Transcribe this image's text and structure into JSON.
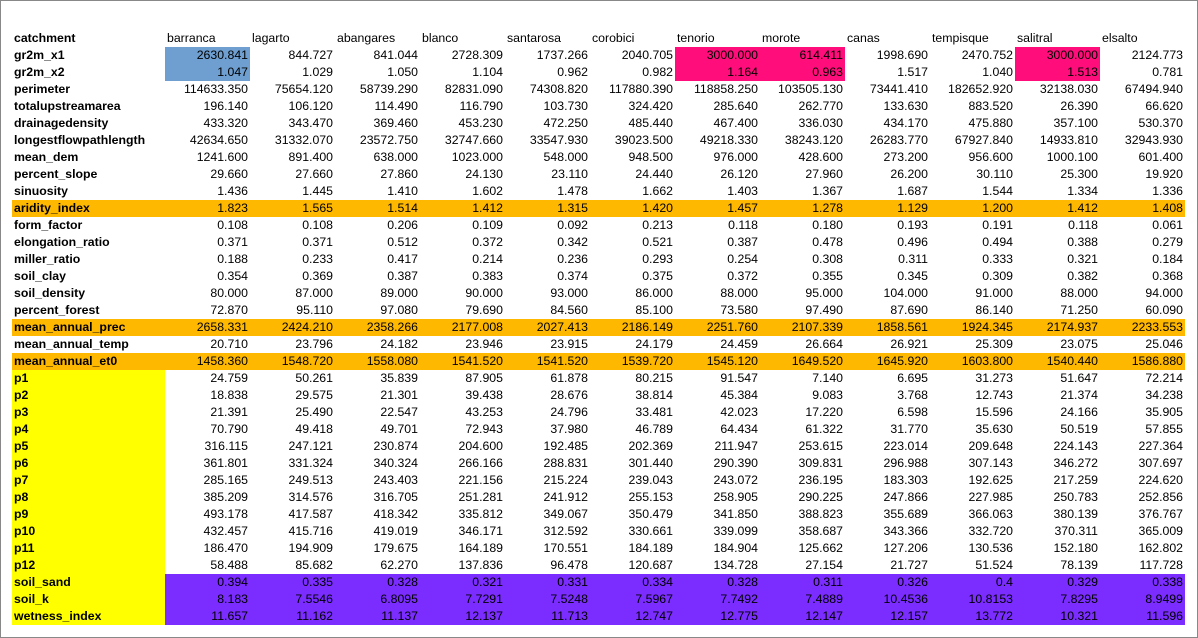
{
  "header": {
    "label": "catchment",
    "catchments": [
      "barranca",
      "lagarto",
      "abangares",
      "blanco",
      "santarosa",
      "corobici",
      "tenorio",
      "morote",
      "canas",
      "tempisque",
      "salitral",
      "elsalto"
    ]
  },
  "colors": {
    "orange": "#ffb800",
    "yellow": "#ffff00",
    "purple": "#7b2cff",
    "blue": "#6f9fd0",
    "pink": "#ff0d7a"
  },
  "rows": [
    {
      "name": "gr2m_x1",
      "values": [
        "2630.841",
        "844.727",
        "841.044",
        "2728.309",
        "1737.266",
        "2040.705",
        "3000.000",
        "614.411",
        "1998.690",
        "2470.752",
        "3000.000",
        "2124.773"
      ],
      "cellColors": {
        "0": "blue",
        "6": "pink",
        "7": "pink",
        "10": "pink"
      }
    },
    {
      "name": "gr2m_x2",
      "values": [
        "1.047",
        "1.029",
        "1.050",
        "1.104",
        "0.962",
        "0.982",
        "1.164",
        "0.963",
        "1.517",
        "1.040",
        "1.513",
        "0.781"
      ],
      "cellColors": {
        "0": "blue",
        "6": "pink",
        "7": "pink",
        "10": "pink"
      }
    },
    {
      "name": "perimeter",
      "values": [
        "114633.350",
        "75654.120",
        "58739.290",
        "82831.090",
        "74308.820",
        "117880.390",
        "118858.250",
        "103505.130",
        "73441.410",
        "182652.920",
        "32138.030",
        "67494.940"
      ]
    },
    {
      "name": "totalupstreamarea",
      "values": [
        "196.140",
        "106.120",
        "114.490",
        "116.790",
        "103.730",
        "324.420",
        "285.640",
        "262.770",
        "133.630",
        "883.520",
        "26.390",
        "66.620"
      ]
    },
    {
      "name": "drainagedensity",
      "values": [
        "433.320",
        "343.470",
        "369.460",
        "453.230",
        "472.250",
        "485.440",
        "467.400",
        "336.030",
        "434.170",
        "475.880",
        "357.100",
        "530.370"
      ]
    },
    {
      "name": "longestflowpathlength",
      "values": [
        "42634.650",
        "31332.070",
        "23572.750",
        "32747.660",
        "33547.930",
        "39023.500",
        "49218.330",
        "38243.120",
        "26283.770",
        "67927.840",
        "14933.810",
        "32943.930"
      ]
    },
    {
      "name": "mean_dem",
      "values": [
        "1241.600",
        "891.400",
        "638.000",
        "1023.000",
        "548.000",
        "948.500",
        "976.000",
        "428.600",
        "273.200",
        "956.600",
        "1000.100",
        "601.400"
      ]
    },
    {
      "name": "percent_slope",
      "values": [
        "29.660",
        "27.660",
        "27.860",
        "24.130",
        "23.110",
        "24.440",
        "26.120",
        "27.960",
        "26.200",
        "30.110",
        "25.300",
        "19.920"
      ]
    },
    {
      "name": "sinuosity",
      "values": [
        "1.436",
        "1.445",
        "1.410",
        "1.602",
        "1.478",
        "1.662",
        "1.403",
        "1.367",
        "1.687",
        "1.544",
        "1.334",
        "1.336"
      ]
    },
    {
      "name": "aridity_index",
      "values": [
        "1.823",
        "1.565",
        "1.514",
        "1.412",
        "1.315",
        "1.420",
        "1.457",
        "1.278",
        "1.129",
        "1.200",
        "1.412",
        "1.408"
      ],
      "rowColor": "orange"
    },
    {
      "name": "form_factor",
      "values": [
        "0.108",
        "0.108",
        "0.206",
        "0.109",
        "0.092",
        "0.213",
        "0.118",
        "0.180",
        "0.193",
        "0.191",
        "0.118",
        "0.061"
      ]
    },
    {
      "name": "elongation_ratio",
      "values": [
        "0.371",
        "0.371",
        "0.512",
        "0.372",
        "0.342",
        "0.521",
        "0.387",
        "0.478",
        "0.496",
        "0.494",
        "0.388",
        "0.279"
      ]
    },
    {
      "name": "miller_ratio",
      "values": [
        "0.188",
        "0.233",
        "0.417",
        "0.214",
        "0.236",
        "0.293",
        "0.254",
        "0.308",
        "0.311",
        "0.333",
        "0.321",
        "0.184"
      ]
    },
    {
      "name": "soil_clay",
      "values": [
        "0.354",
        "0.369",
        "0.387",
        "0.383",
        "0.374",
        "0.375",
        "0.372",
        "0.355",
        "0.345",
        "0.309",
        "0.382",
        "0.368"
      ]
    },
    {
      "name": "soil_density",
      "values": [
        "80.000",
        "87.000",
        "89.000",
        "90.000",
        "93.000",
        "86.000",
        "88.000",
        "95.000",
        "104.000",
        "91.000",
        "88.000",
        "94.000"
      ]
    },
    {
      "name": "percent_forest",
      "values": [
        "72.870",
        "95.110",
        "97.080",
        "79.690",
        "84.560",
        "85.100",
        "73.580",
        "97.490",
        "87.690",
        "86.140",
        "71.250",
        "60.090"
      ]
    },
    {
      "name": "mean_annual_prec",
      "values": [
        "2658.331",
        "2424.210",
        "2358.266",
        "2177.008",
        "2027.413",
        "2186.149",
        "2251.760",
        "2107.339",
        "1858.561",
        "1924.345",
        "2174.937",
        "2233.553"
      ],
      "rowColor": "orange"
    },
    {
      "name": "mean_annual_temp",
      "values": [
        "20.710",
        "23.796",
        "24.182",
        "23.946",
        "23.915",
        "24.179",
        "24.459",
        "26.664",
        "26.921",
        "25.309",
        "23.075",
        "25.046"
      ]
    },
    {
      "name": "mean_annual_et0",
      "values": [
        "1458.360",
        "1548.720",
        "1558.080",
        "1541.520",
        "1541.520",
        "1539.720",
        "1545.120",
        "1649.520",
        "1645.920",
        "1603.800",
        "1540.440",
        "1586.880"
      ],
      "rowColor": "orange"
    },
    {
      "name": "p1",
      "values": [
        "24.759",
        "50.261",
        "35.839",
        "87.905",
        "61.878",
        "80.215",
        "91.547",
        "7.140",
        "6.695",
        "31.273",
        "51.647",
        "72.214"
      ],
      "labelColor": "yellow"
    },
    {
      "name": "p2",
      "values": [
        "18.838",
        "29.575",
        "21.301",
        "39.438",
        "28.676",
        "38.814",
        "45.384",
        "9.083",
        "3.768",
        "12.743",
        "21.374",
        "34.238"
      ],
      "labelColor": "yellow"
    },
    {
      "name": "p3",
      "values": [
        "21.391",
        "25.490",
        "22.547",
        "43.253",
        "24.796",
        "33.481",
        "42.023",
        "17.220",
        "6.598",
        "15.596",
        "24.166",
        "35.905"
      ],
      "labelColor": "yellow"
    },
    {
      "name": "p4",
      "values": [
        "70.790",
        "49.418",
        "49.701",
        "72.943",
        "37.980",
        "46.789",
        "64.434",
        "61.322",
        "31.770",
        "35.630",
        "50.519",
        "57.855"
      ],
      "labelColor": "yellow"
    },
    {
      "name": "p5",
      "values": [
        "316.115",
        "247.121",
        "230.874",
        "204.600",
        "192.485",
        "202.369",
        "211.947",
        "253.615",
        "223.014",
        "209.648",
        "224.143",
        "227.364"
      ],
      "labelColor": "yellow"
    },
    {
      "name": "p6",
      "values": [
        "361.801",
        "331.324",
        "340.324",
        "266.166",
        "288.831",
        "301.440",
        "290.390",
        "309.831",
        "296.988",
        "307.143",
        "346.272",
        "307.697"
      ],
      "labelColor": "yellow"
    },
    {
      "name": "p7",
      "values": [
        "285.165",
        "249.513",
        "243.403",
        "221.156",
        "215.224",
        "239.043",
        "243.072",
        "236.195",
        "183.303",
        "192.625",
        "217.259",
        "224.620"
      ],
      "labelColor": "yellow"
    },
    {
      "name": "p8",
      "values": [
        "385.209",
        "314.576",
        "316.705",
        "251.281",
        "241.912",
        "255.153",
        "258.905",
        "290.225",
        "247.866",
        "227.985",
        "250.783",
        "252.856"
      ],
      "labelColor": "yellow"
    },
    {
      "name": "p9",
      "values": [
        "493.178",
        "417.587",
        "418.342",
        "335.812",
        "349.067",
        "350.479",
        "341.850",
        "388.823",
        "355.689",
        "366.063",
        "380.139",
        "376.767"
      ],
      "labelColor": "yellow"
    },
    {
      "name": "p10",
      "values": [
        "432.457",
        "415.716",
        "419.019",
        "346.171",
        "312.592",
        "330.661",
        "339.099",
        "358.687",
        "343.366",
        "332.720",
        "370.311",
        "365.009"
      ],
      "labelColor": "yellow"
    },
    {
      "name": "p11",
      "values": [
        "186.470",
        "194.909",
        "179.675",
        "164.189",
        "170.551",
        "184.189",
        "184.904",
        "125.662",
        "127.206",
        "130.536",
        "152.180",
        "162.802"
      ],
      "labelColor": "yellow"
    },
    {
      "name": "p12",
      "values": [
        "58.488",
        "85.682",
        "62.270",
        "137.836",
        "96.478",
        "120.687",
        "134.728",
        "27.154",
        "21.727",
        "51.524",
        "78.139",
        "117.728"
      ],
      "labelColor": "yellow"
    },
    {
      "name": "soil_sand",
      "values": [
        "0.394",
        "0.335",
        "0.328",
        "0.321",
        "0.331",
        "0.334",
        "0.328",
        "0.311",
        "0.326",
        "0.4",
        "0.329",
        "0.338"
      ],
      "rowColor": "purple",
      "labelColor": "yellow"
    },
    {
      "name": "soil_k",
      "values": [
        "8.183",
        "7.5546",
        "6.8095",
        "7.7291",
        "7.5248",
        "7.5967",
        "7.7492",
        "7.4889",
        "10.4536",
        "10.8153",
        "7.8295",
        "8.9499"
      ],
      "rowColor": "purple",
      "labelColor": "yellow"
    },
    {
      "name": "wetness_index",
      "values": [
        "11.657",
        "11.162",
        "11.137",
        "12.137",
        "11.713",
        "12.747",
        "12.775",
        "12.147",
        "12.157",
        "13.772",
        "10.321",
        "11.596"
      ],
      "rowColor": "purple",
      "labelColor": "yellow"
    }
  ]
}
